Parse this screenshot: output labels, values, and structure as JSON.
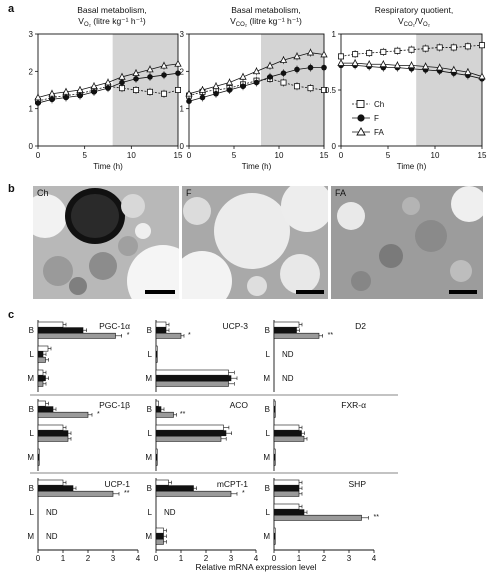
{
  "panel_letters": {
    "a": "a",
    "b": "b",
    "c": "c"
  },
  "panel_a": {
    "plots": [
      {
        "title_line1": "Basal metabolism,",
        "title_line2": "V",
        "title_sub": "O₂",
        "title_rest": " (litre kg⁻¹ h⁻¹)"
      },
      {
        "title_line1": "Basal metabolism,",
        "title_line2": "V",
        "title_sub": "CO₂",
        "title_rest": " (litre kg⁻¹ h⁻¹)"
      },
      {
        "title_line1": "Respiratory quotient,",
        "title_line2": "V",
        "title_sub": "CO₂",
        "title_rest": "/V",
        "title_sub2": "O₂"
      }
    ],
    "xlabel": "Time (h)",
    "legend": [
      "Ch",
      "F",
      "FA"
    ]
  },
  "panel_b": {
    "images": [
      {
        "label": "Ch"
      },
      {
        "label": "F"
      },
      {
        "label": "FA"
      }
    ]
  },
  "panel_c": {
    "xlabel": "Relative mRNA expression level",
    "nd": "ND",
    "row_labels": [
      "B",
      "L",
      "M"
    ]
  },
  "chart_data": [
    {
      "type": "line",
      "panel": "a-1",
      "title": "Basal metabolism, VO2 (litre kg-1 h-1)",
      "xlabel": "Time (h)",
      "xlim": [
        0,
        15
      ],
      "ylim": [
        0,
        3
      ],
      "xticks": [
        0,
        5,
        10,
        15
      ],
      "yticks": [
        0,
        1,
        2,
        3
      ],
      "shaded_x": [
        8,
        15
      ],
      "x": [
        0,
        1.5,
        3,
        4.5,
        6,
        7.5,
        9,
        10.5,
        12,
        13.5,
        15
      ],
      "series": [
        {
          "name": "Ch",
          "marker": "square",
          "values": [
            1.2,
            1.3,
            1.35,
            1.4,
            1.5,
            1.6,
            1.55,
            1.5,
            1.45,
            1.4,
            1.5
          ]
        },
        {
          "name": "F",
          "marker": "circle",
          "values": [
            1.15,
            1.25,
            1.3,
            1.35,
            1.45,
            1.55,
            1.7,
            1.8,
            1.85,
            1.9,
            1.95
          ]
        },
        {
          "name": "FA",
          "marker": "triangle",
          "values": [
            1.3,
            1.4,
            1.45,
            1.5,
            1.6,
            1.7,
            1.85,
            1.95,
            2.05,
            2.15,
            2.2
          ]
        }
      ]
    },
    {
      "type": "line",
      "panel": "a-2",
      "title": "Basal metabolism, VCO2 (litre kg-1 h-1)",
      "xlabel": "Time (h)",
      "xlim": [
        0,
        15
      ],
      "ylim": [
        0,
        3
      ],
      "xticks": [
        0,
        5,
        10,
        15
      ],
      "yticks": [
        0,
        1,
        2,
        3
      ],
      "shaded_x": [
        8,
        15
      ],
      "x": [
        0,
        1.5,
        3,
        4.5,
        6,
        7.5,
        9,
        10.5,
        12,
        13.5,
        15
      ],
      "series": [
        {
          "name": "Ch",
          "marker": "square",
          "values": [
            1.35,
            1.45,
            1.5,
            1.55,
            1.65,
            1.75,
            1.8,
            1.7,
            1.6,
            1.55,
            1.5
          ]
        },
        {
          "name": "F",
          "marker": "circle",
          "values": [
            1.2,
            1.3,
            1.4,
            1.5,
            1.6,
            1.7,
            1.85,
            1.95,
            2.05,
            2.1,
            2.1
          ]
        },
        {
          "name": "FA",
          "marker": "triangle",
          "values": [
            1.4,
            1.5,
            1.6,
            1.7,
            1.85,
            2.0,
            2.15,
            2.3,
            2.4,
            2.5,
            2.45
          ]
        }
      ]
    },
    {
      "type": "line",
      "panel": "a-3",
      "title": "Respiratory quotient, VCO2/VO2",
      "xlabel": "Time (h)",
      "xlim": [
        0,
        15
      ],
      "ylim": [
        0,
        1
      ],
      "xticks": [
        0,
        5,
        10,
        15
      ],
      "yticks": [
        0,
        0.5,
        1
      ],
      "shaded_x": [
        8,
        15
      ],
      "x": [
        0,
        1.5,
        3,
        4.5,
        6,
        7.5,
        9,
        10.5,
        12,
        13.5,
        15
      ],
      "series": [
        {
          "name": "Ch",
          "marker": "square",
          "values": [
            0.8,
            0.82,
            0.83,
            0.84,
            0.85,
            0.86,
            0.87,
            0.88,
            0.88,
            0.89,
            0.9
          ]
        },
        {
          "name": "F",
          "marker": "circle",
          "values": [
            0.72,
            0.72,
            0.71,
            0.7,
            0.7,
            0.69,
            0.68,
            0.67,
            0.65,
            0.63,
            0.6
          ]
        },
        {
          "name": "FA",
          "marker": "triangle",
          "values": [
            0.74,
            0.74,
            0.73,
            0.73,
            0.72,
            0.72,
            0.71,
            0.7,
            0.68,
            0.66,
            0.62
          ]
        }
      ]
    },
    {
      "type": "bar",
      "panel": "c",
      "orientation": "horizontal",
      "xlabel": "Relative mRNA expression level",
      "xlim": [
        0,
        4
      ],
      "xticks": [
        0,
        1,
        2,
        3,
        4
      ],
      "series_names": [
        "Ch",
        "F",
        "FA"
      ],
      "genes": [
        {
          "name": "PGC-1α",
          "B": [
            1.0,
            1.8,
            3.1
          ],
          "L": [
            0.4,
            0.2,
            0.3
          ],
          "M": [
            0.2,
            0.3,
            0.2
          ],
          "sig": {
            "B": "*"
          }
        },
        {
          "name": "UCP-3",
          "B": [
            0.4,
            0.4,
            1.0
          ],
          "L": [
            0.05,
            0.05,
            0.05
          ],
          "M": [
            2.9,
            3.0,
            2.9
          ],
          "sig": {
            "B": "*"
          }
        },
        {
          "name": "D2",
          "B": [
            1.0,
            0.9,
            1.8
          ],
          "L": null,
          "M": null,
          "sig": {
            "B": "**"
          }
        },
        {
          "name": "PGC-1β",
          "B": [
            0.3,
            0.6,
            2.0
          ],
          "L": [
            1.0,
            1.2,
            1.2
          ],
          "M": [
            0.05,
            0.05,
            0.05
          ],
          "sig": {
            "B": "*"
          }
        },
        {
          "name": "ACO",
          "B": [
            0.1,
            0.2,
            0.7
          ],
          "L": [
            2.7,
            2.8,
            2.6
          ],
          "M": [
            0.05,
            0.05,
            0.05
          ],
          "sig": {
            "B": "**"
          }
        },
        {
          "name": "FXR-α",
          "B": [
            0.05,
            0.05,
            0.05
          ],
          "L": [
            1.0,
            1.1,
            1.2
          ],
          "M": [
            0.05,
            0.05,
            0.05
          ],
          "sig": {}
        },
        {
          "name": "UCP-1",
          "B": [
            1.0,
            1.4,
            3.0
          ],
          "L": null,
          "M": null,
          "sig": {
            "B": "**"
          }
        },
        {
          "name": "mCPT-1",
          "B": [
            0.5,
            1.5,
            3.0
          ],
          "L": null,
          "M": [
            0.3,
            0.3,
            0.3
          ],
          "sig": {
            "B": "*"
          }
        },
        {
          "name": "SHP",
          "B": [
            1.0,
            1.0,
            1.0
          ],
          "L": [
            1.0,
            1.2,
            3.5
          ],
          "M": [
            0.05,
            0.05,
            0.05
          ],
          "sig": {
            "L": "**"
          }
        }
      ]
    }
  ],
  "colors": {
    "shade": "#d4d4d4",
    "ch_bar": "#ffffff",
    "f_bar": "#111111",
    "fa_bar": "#9a9a9a"
  }
}
